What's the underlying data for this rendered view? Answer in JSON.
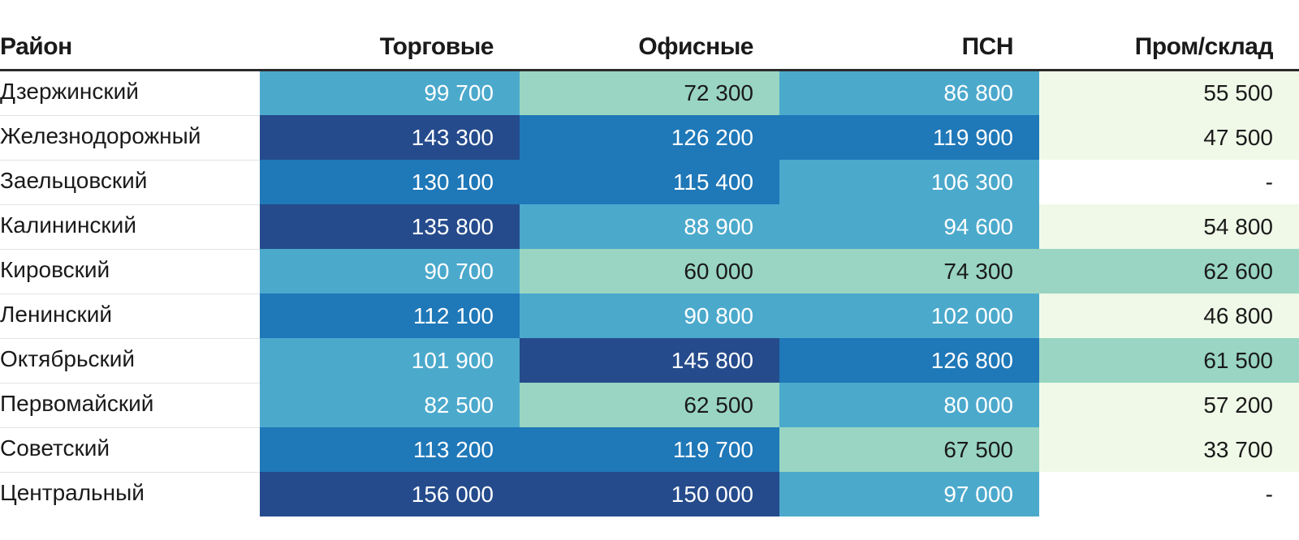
{
  "chart_data": {
    "type": "table",
    "title": "",
    "columns": [
      "Район",
      "Торговые",
      "Офисные",
      "ПСН",
      "Пром/склад"
    ],
    "rows": [
      {
        "district": "Дзержинский",
        "values": [
          "99 700",
          "72 300",
          "86 800",
          "55 500"
        ]
      },
      {
        "district": "Железнодорожный",
        "values": [
          "143 300",
          "126 200",
          "119 900",
          "47 500"
        ]
      },
      {
        "district": "Заельцовский",
        "values": [
          "130 100",
          "115 400",
          "106 300",
          "-"
        ]
      },
      {
        "district": "Калининский",
        "values": [
          "135 800",
          "88 900",
          "94 600",
          "54 800"
        ]
      },
      {
        "district": "Кировский",
        "values": [
          "90 700",
          "60 000",
          "74 300",
          "62 600"
        ]
      },
      {
        "district": "Ленинский",
        "values": [
          "112 100",
          "90 800",
          "102 000",
          "46 800"
        ]
      },
      {
        "district": "Октябрьский",
        "values": [
          "101 900",
          "145 800",
          "126 800",
          "61 500"
        ]
      },
      {
        "district": "Первомайский",
        "values": [
          "82 500",
          "62 500",
          "80 000",
          "57 200"
        ]
      },
      {
        "district": "Советский",
        "values": [
          "113 200",
          "119 700",
          "67 500",
          "33 700"
        ]
      },
      {
        "district": "Центральный",
        "values": [
          "156 000",
          "150 000",
          "97 000",
          "-"
        ]
      }
    ],
    "numeric_values": [
      [
        99700,
        72300,
        86800,
        55500
      ],
      [
        143300,
        126200,
        119900,
        47500
      ],
      [
        130100,
        115400,
        106300,
        null
      ],
      [
        135800,
        88900,
        94600,
        54800
      ],
      [
        90700,
        60000,
        74300,
        62600
      ],
      [
        112100,
        90800,
        102000,
        46800
      ],
      [
        101900,
        145800,
        126800,
        61500
      ],
      [
        82500,
        62500,
        80000,
        57200
      ],
      [
        113200,
        119700,
        67500,
        33700
      ],
      [
        156000,
        150000,
        97000,
        null
      ]
    ],
    "color_scale": {
      "thresholds": [
        60000,
        80000,
        110000,
        135000
      ],
      "colors": [
        "#f0f9e8",
        "#99d5c2",
        "#4ba9cc",
        "#1f78b8",
        "#254b8c"
      ],
      "text_light": "#ffffff",
      "text_dark": "#1a1a1a",
      "empty_color": "#ffffff"
    }
  }
}
